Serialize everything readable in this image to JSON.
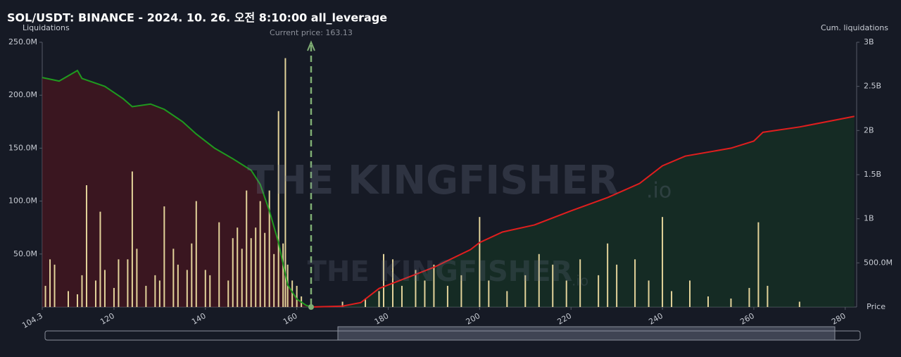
{
  "chart_data": {
    "type": "bar",
    "title": "SOL/USDT: BINANCE - 2024. 10. 26. 오전 8:10:00 all_leverage",
    "y_label": "Liquidations",
    "y2_label": "Cum. liquidations",
    "x_label": "Price",
    "watermark": {
      "text": "THE KINGFISHER",
      "suffix": ".io"
    },
    "current_price": {
      "value": 163.13,
      "label": "Current price: 163.13"
    },
    "xlim": [
      104.3,
      282.5
    ],
    "xticks": [
      104.3,
      120,
      140,
      160,
      180,
      200,
      220,
      240,
      260,
      280
    ],
    "ylim": [
      0,
      250000000
    ],
    "yticks": [
      {
        "value": 50000000,
        "label": "50.0M"
      },
      {
        "value": 100000000,
        "label": "100.0M"
      },
      {
        "value": 150000000,
        "label": "150.0M"
      },
      {
        "value": 200000000,
        "label": "200.0M"
      },
      {
        "value": 250000000,
        "label": "250.0M"
      }
    ],
    "y2lim": [
      0,
      3000000000
    ],
    "y2ticks": [
      {
        "value": 500000000,
        "label": "500.0M"
      },
      {
        "value": 1000000000,
        "label": "1B"
      },
      {
        "value": 1500000000,
        "label": "1.5B"
      },
      {
        "value": 2000000000,
        "label": "2B"
      },
      {
        "value": 2500000000,
        "label": "2.5B"
      },
      {
        "value": 3000000000,
        "label": "3B"
      }
    ],
    "bars": {
      "color": "#e3d39a",
      "x": [
        105,
        106,
        107,
        110,
        112,
        113,
        114,
        116,
        117,
        118,
        120,
        121,
        123,
        124,
        125,
        127,
        129,
        130,
        131,
        133,
        134,
        136,
        137,
        138,
        140,
        141,
        143,
        145,
        146,
        147,
        148,
        149,
        150,
        151,
        152,
        153,
        154,
        155,
        156,
        157,
        157.5,
        158,
        159,
        160,
        161,
        170,
        175,
        178,
        179,
        181,
        183,
        186,
        188,
        190,
        193,
        196,
        200,
        202,
        206,
        210,
        213,
        216,
        219,
        222,
        226,
        228,
        230,
        234,
        237,
        240,
        242,
        246,
        250,
        255,
        259,
        261,
        263,
        270
      ],
      "values": [
        20000000,
        45000000,
        40000000,
        15000000,
        12000000,
        30000000,
        115000000,
        25000000,
        90000000,
        35000000,
        18000000,
        45000000,
        45000000,
        128000000,
        55000000,
        20000000,
        30000000,
        25000000,
        95000000,
        55000000,
        40000000,
        35000000,
        60000000,
        100000000,
        35000000,
        30000000,
        80000000,
        25000000,
        65000000,
        75000000,
        55000000,
        110000000,
        65000000,
        75000000,
        100000000,
        70000000,
        110000000,
        50000000,
        185000000,
        60000000,
        235000000,
        40000000,
        25000000,
        20000000,
        10000000,
        5000000,
        8000000,
        15000000,
        50000000,
        45000000,
        20000000,
        35000000,
        25000000,
        40000000,
        20000000,
        30000000,
        85000000,
        25000000,
        15000000,
        30000000,
        50000000,
        40000000,
        25000000,
        45000000,
        30000000,
        60000000,
        40000000,
        45000000,
        25000000,
        85000000,
        15000000,
        25000000,
        10000000,
        8000000,
        18000000,
        80000000,
        20000000,
        5000000
      ]
    },
    "lines": [
      {
        "axis": "y2",
        "color": "#1f9a1f",
        "fill": "rgba(90,20,30,0.55)",
        "x": [
          104.3,
          108,
          112,
          113,
          118,
          122,
          124,
          128,
          131,
          135,
          138,
          142,
          146,
          150,
          152,
          154,
          156,
          158,
          160,
          162,
          163.13
        ],
        "values": [
          2600000000,
          2560000000,
          2680000000,
          2590000000,
          2500000000,
          2360000000,
          2270000000,
          2300000000,
          2240000000,
          2100000000,
          1960000000,
          1800000000,
          1680000000,
          1550000000,
          1390000000,
          1090000000,
          730000000,
          250000000,
          90000000,
          20000000,
          0
        ]
      },
      {
        "axis": "y2",
        "color": "#e01e1e",
        "fill": "rgba(20,60,35,0.5)",
        "x": [
          163.13,
          170,
          174,
          178,
          182,
          190,
          198,
          200,
          205,
          212,
          220,
          228,
          235,
          240,
          245,
          255,
          260,
          262,
          270,
          282
        ],
        "values": [
          0,
          10000000,
          50000000,
          210000000,
          290000000,
          450000000,
          650000000,
          730000000,
          850000000,
          930000000,
          1090000000,
          1240000000,
          1400000000,
          1600000000,
          1710000000,
          1800000000,
          1880000000,
          1980000000,
          2040000000,
          2160000000
        ]
      }
    ]
  }
}
